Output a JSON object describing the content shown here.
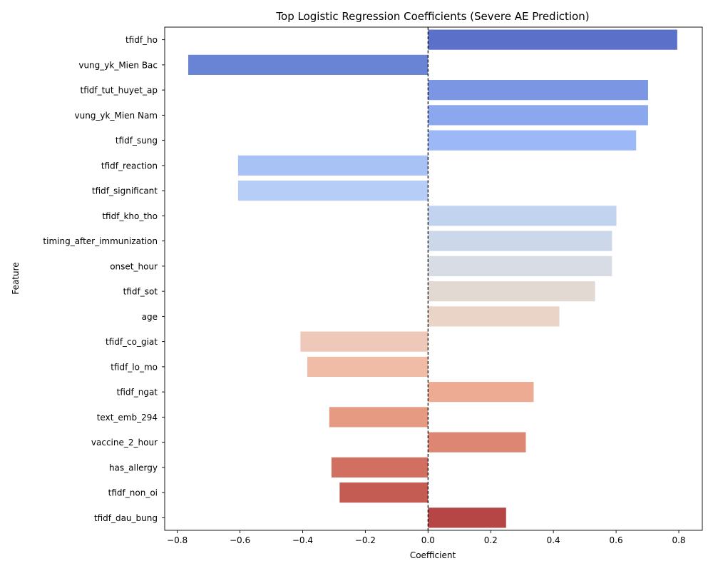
{
  "chart_data": {
    "type": "bar",
    "orientation": "horizontal",
    "title": "Top Logistic Regression Coefficients (Severe AE Prediction)",
    "xlabel": "Coefficient",
    "ylabel": "Feature",
    "xlim": [
      -0.84,
      0.875
    ],
    "xticks": [
      -0.8,
      -0.6,
      -0.4,
      -0.2,
      0.0,
      0.2,
      0.4,
      0.6,
      0.8
    ],
    "xtick_labels": [
      "−0.8",
      "−0.6",
      "−0.4",
      "−0.2",
      "0.0",
      "0.2",
      "0.4",
      "0.6",
      "0.8"
    ],
    "reference_line": {
      "x": 0,
      "style": "dashed",
      "color": "#000000"
    },
    "grid": false,
    "palette": "coolwarm",
    "categories": [
      "tfidf_ho",
      "vung_yk_Mien Bac",
      "tfidf_tut_huyet_ap",
      "vung_yk_Mien Nam",
      "tfidf_sung",
      "tfidf_reaction",
      "tfidf_significant",
      "tfidf_kho_tho",
      "timing_after_immunization",
      "onset_hour",
      "tfidf_sot",
      "age",
      "tfidf_co_giat",
      "tfidf_lo_mo",
      "tfidf_ngat",
      "text_emb_294",
      "vaccine_2_hour",
      "has_allergy",
      "tfidf_non_oi",
      "tfidf_dau_bung"
    ],
    "values": [
      0.795,
      -0.765,
      0.702,
      0.702,
      0.664,
      -0.606,
      -0.606,
      0.601,
      0.587,
      0.587,
      0.533,
      0.419,
      -0.407,
      -0.385,
      0.337,
      -0.315,
      0.312,
      -0.308,
      -0.282,
      0.249
    ],
    "colors": [
      "#5b70c8",
      "#6a84d5",
      "#7b97e3",
      "#8ba8ef",
      "#9cb8f7",
      "#a9c2f6",
      "#b5cdf7",
      "#c2d3f0",
      "#ccd7ea",
      "#d8dce4",
      "#e3d9d3",
      "#ead4c8",
      "#eec8b8",
      "#f0bca5",
      "#edab93",
      "#e69a82",
      "#dd8673",
      "#d17060",
      "#c55c53",
      "#b64546"
    ]
  }
}
